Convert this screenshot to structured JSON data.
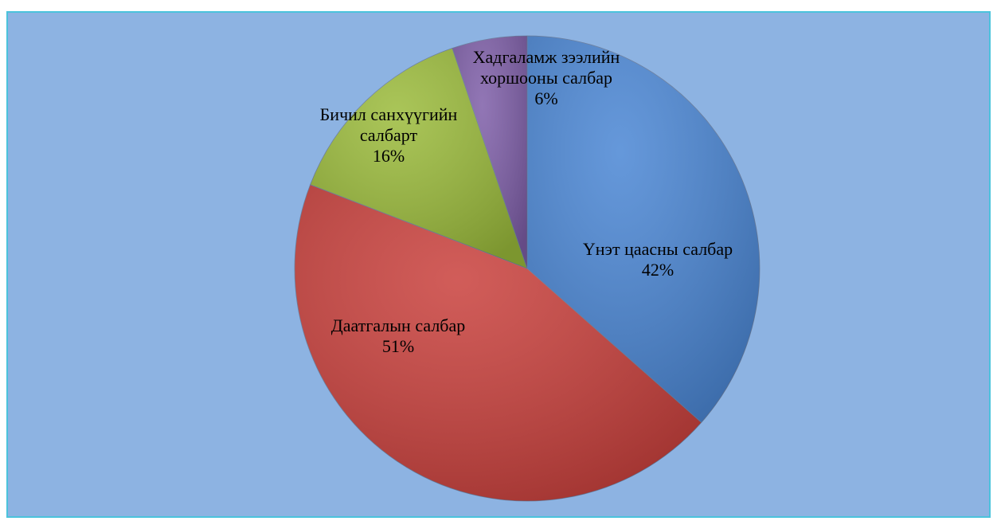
{
  "chart_data": {
    "type": "pie",
    "categories": [
      "Үнэт цаасны салбар",
      "Даатгалын салбар",
      "Бичил санхүүгийн салбарт",
      "Хадгаламж зээлийн хоршооны  салбар"
    ],
    "values": [
      42,
      51,
      16,
      6
    ],
    "value_labels": [
      "42%",
      "51%",
      "16%",
      "6%"
    ],
    "colors": [
      "#4a86d4",
      "#c9403c",
      "#9bbb3b",
      "#7e5ea8"
    ]
  }
}
